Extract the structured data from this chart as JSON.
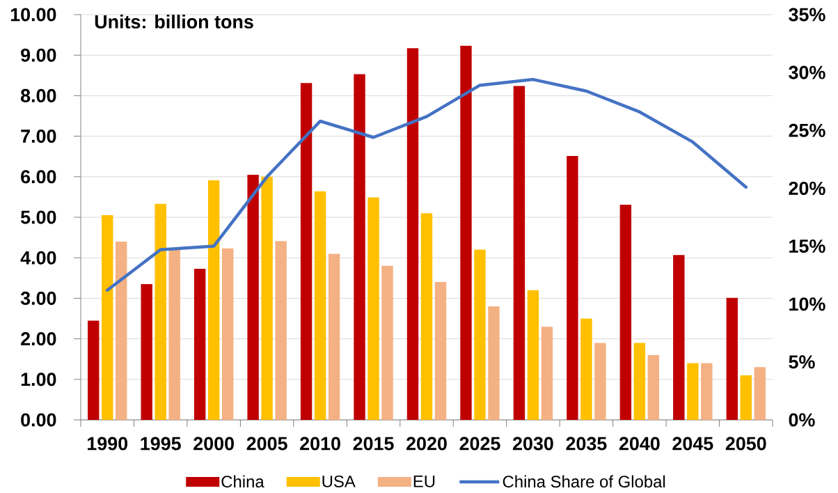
{
  "chart_data": {
    "type": "bar",
    "annotations": [
      "Units: billion tons"
    ],
    "categories": [
      "1990",
      "1995",
      "2000",
      "2005",
      "2010",
      "2015",
      "2020",
      "2025",
      "2030",
      "2035",
      "2040",
      "2045",
      "2050"
    ],
    "series": [
      {
        "name": "China",
        "color": "#c00000",
        "values": [
          2.45,
          3.35,
          3.73,
          6.05,
          8.31,
          8.53,
          9.17,
          9.23,
          8.24,
          6.51,
          5.31,
          4.07,
          3.01
        ]
      },
      {
        "name": "USA",
        "color": "#ffc000",
        "values": [
          5.05,
          5.33,
          5.91,
          6.0,
          5.64,
          5.49,
          5.1,
          4.2,
          3.2,
          2.5,
          1.9,
          1.4,
          1.1
        ]
      },
      {
        "name": "EU",
        "color": "#f4b183",
        "values": [
          4.4,
          4.2,
          4.23,
          4.41,
          4.1,
          3.8,
          3.4,
          2.8,
          2.3,
          1.9,
          1.6,
          1.4,
          1.3
        ]
      },
      {
        "name": "China Share of Global",
        "type": "line",
        "axis": "y2",
        "color": "#4472c4",
        "values": [
          11.2,
          14.7,
          15.0,
          21.0,
          25.8,
          24.4,
          26.2,
          28.9,
          29.4,
          28.4,
          26.6,
          24.0,
          20.1
        ]
      }
    ],
    "ylim": [
      0,
      10
    ],
    "yticks": [
      {
        "value": 0,
        "label": "0.00"
      },
      {
        "value": 1,
        "label": "1.00"
      },
      {
        "value": 2,
        "label": "2.00"
      },
      {
        "value": 3,
        "label": "3.00"
      },
      {
        "value": 4,
        "label": "4.00"
      },
      {
        "value": 5,
        "label": "5.00"
      },
      {
        "value": 6,
        "label": "6.00"
      },
      {
        "value": 7,
        "label": "7.00"
      },
      {
        "value": 8,
        "label": "8.00"
      },
      {
        "value": 9,
        "label": "9.00"
      },
      {
        "value": 10,
        "label": "10.00"
      }
    ],
    "y2lim": [
      0,
      35
    ],
    "y2ticks": [
      {
        "value": 0,
        "label": "0%"
      },
      {
        "value": 5,
        "label": "5%"
      },
      {
        "value": 10,
        "label": "10%"
      },
      {
        "value": 15,
        "label": "15%"
      },
      {
        "value": 20,
        "label": "20%"
      },
      {
        "value": 25,
        "label": "25%"
      },
      {
        "value": 30,
        "label": "30%"
      },
      {
        "value": 35,
        "label": "35%"
      }
    ],
    "grid": "y",
    "legend": "bottom"
  }
}
